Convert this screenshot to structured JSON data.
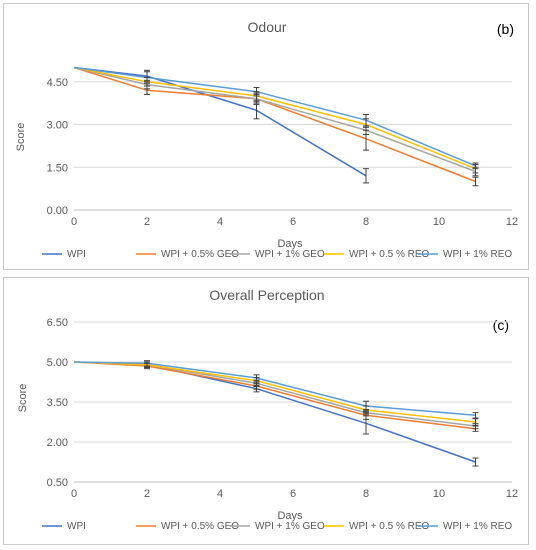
{
  "chart_data": [
    {
      "type": "line",
      "panel_label": "(b)",
      "title": "Odour",
      "xlabel": "Days",
      "ylabel": "Score",
      "xlim": [
        0,
        12
      ],
      "ylim": [
        0,
        6
      ],
      "x_ticks": [
        "0",
        "2",
        "4",
        "6",
        "8",
        "10",
        "12"
      ],
      "y_ticks": [
        "0.00",
        "1.50",
        "3.00",
        "4.50"
      ],
      "grid": true,
      "legend_position": "bottom",
      "x": [
        0,
        2,
        5,
        8,
        11
      ],
      "series": [
        {
          "name": "WPI",
          "color": "#4472c4",
          "values": [
            5.0,
            4.7,
            3.5,
            1.2,
            null
          ],
          "errors": [
            0,
            0.2,
            0.3,
            0.25,
            null
          ]
        },
        {
          "name": "WPI + 0.5% GEO",
          "color": "#ed7d31",
          "values": [
            5.0,
            4.2,
            3.9,
            2.5,
            1.0
          ],
          "errors": [
            0,
            0.15,
            0.2,
            0.4,
            0.15
          ]
        },
        {
          "name": "WPI + 1% GEO",
          "color": "#a5a5a5",
          "values": [
            5.0,
            4.4,
            3.9,
            2.8,
            1.35
          ],
          "errors": [
            0,
            0.15,
            0.15,
            0.15,
            0.15
          ]
        },
        {
          "name": "WPI + 0.5 % REO",
          "color": "#ffc000",
          "values": [
            5.0,
            4.5,
            4.0,
            3.0,
            1.45
          ],
          "errors": [
            0,
            0.15,
            0.15,
            0.2,
            0.15
          ]
        },
        {
          "name": "WPI + 1% REO",
          "color": "#5b9bd5",
          "values": [
            5.0,
            4.65,
            4.15,
            3.15,
            1.55
          ],
          "errors": [
            0,
            0.2,
            0.15,
            0.2,
            0.1
          ]
        }
      ]
    },
    {
      "type": "line",
      "panel_label": "(c)",
      "title": "Overall Perception",
      "xlabel": "Days",
      "ylabel": "Score",
      "xlim": [
        0,
        12
      ],
      "ylim": [
        0.5,
        6.5
      ],
      "x_ticks": [
        "0",
        "2",
        "4",
        "6",
        "8",
        "10",
        "12"
      ],
      "y_ticks": [
        "0.50",
        "2.00",
        "3.50",
        "5.00",
        "6.50"
      ],
      "grid": true,
      "legend_position": "bottom",
      "x": [
        0,
        2,
        5,
        8,
        11
      ],
      "series": [
        {
          "name": "WPI",
          "color": "#4472c4",
          "values": [
            5.0,
            4.9,
            4.0,
            2.7,
            1.25
          ],
          "errors": [
            0,
            0.1,
            0.12,
            0.4,
            0.15
          ]
        },
        {
          "name": "WPI + 0.5% GEO",
          "color": "#ed7d31",
          "values": [
            5.0,
            4.85,
            4.1,
            3.0,
            2.5
          ],
          "errors": [
            0,
            0.1,
            0.12,
            0.15,
            0.1
          ]
        },
        {
          "name": "WPI + 1% GEO",
          "color": "#a5a5a5",
          "values": [
            5.0,
            4.9,
            4.2,
            3.1,
            2.6
          ],
          "errors": [
            0,
            0.1,
            0.12,
            0.12,
            0.1
          ]
        },
        {
          "name": "WPI + 0.5 % REO",
          "color": "#ffc000",
          "values": [
            5.0,
            4.9,
            4.3,
            3.2,
            2.75
          ],
          "errors": [
            0,
            0.1,
            0.12,
            0.15,
            0.12
          ]
        },
        {
          "name": "WPI + 1% REO",
          "color": "#5b9bd5",
          "values": [
            5.0,
            4.95,
            4.4,
            3.35,
            3.0
          ],
          "errors": [
            0,
            0.1,
            0.12,
            0.18,
            0.1
          ]
        }
      ]
    }
  ]
}
